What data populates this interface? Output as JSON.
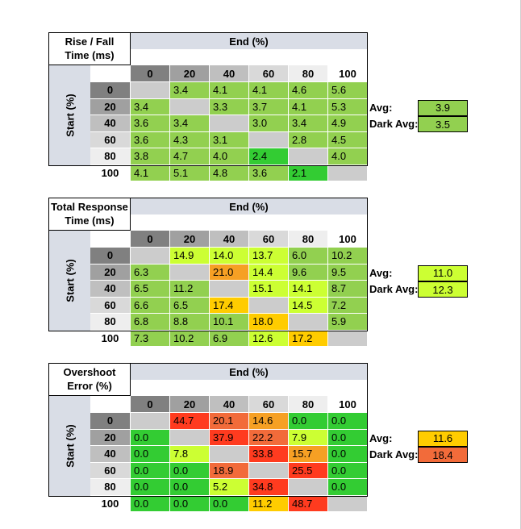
{
  "colors": {
    "green_light": "#92d050",
    "green": "#33cc33",
    "yellow_green": "#ccff33",
    "yellow": "#ffcc00",
    "orange": "#f6a024",
    "red_orange": "#f26b3a",
    "red": "#ff3b1f",
    "gray_cell": "#cccccc",
    "header_bg": "#d9dde6"
  },
  "tables": [
    {
      "title": [
        "Rise / Fall",
        "Time (ms)"
      ],
      "end_label": "End (%)",
      "start_label": "Start (%)",
      "headers": [
        "0",
        "20",
        "40",
        "60",
        "80",
        "100"
      ],
      "rows": [
        [
          "",
          "3.4",
          "4.1",
          "4.1",
          "4.6",
          "5.6"
        ],
        [
          "3.4",
          "",
          "3.3",
          "3.7",
          "4.1",
          "5.3"
        ],
        [
          "3.6",
          "3.4",
          "",
          "3.0",
          "3.4",
          "4.9"
        ],
        [
          "3.6",
          "4.3",
          "3.1",
          "",
          "2.8",
          "4.5"
        ],
        [
          "3.8",
          "4.7",
          "4.0",
          "2.4",
          "",
          "4.0"
        ],
        [
          "4.1",
          "5.1",
          "4.8",
          "3.6",
          "2.1",
          ""
        ]
      ],
      "colors": [
        [
          "gray_cell",
          "green_light",
          "green_light",
          "green_light",
          "green_light",
          "green_light"
        ],
        [
          "green_light",
          "gray_cell",
          "green_light",
          "green_light",
          "green_light",
          "green_light"
        ],
        [
          "green_light",
          "green_light",
          "gray_cell",
          "green_light",
          "green_light",
          "green_light"
        ],
        [
          "green_light",
          "green_light",
          "green_light",
          "gray_cell",
          "green_light",
          "green_light"
        ],
        [
          "green_light",
          "green_light",
          "green_light",
          "green",
          "gray_cell",
          "green_light"
        ],
        [
          "green_light",
          "green_light",
          "green_light",
          "green_light",
          "green",
          "gray_cell"
        ]
      ],
      "avg_label": "Avg:",
      "avg_value": "3.9",
      "avg_color": "green_light",
      "dark_avg_label": "Dark Avg:",
      "dark_avg_value": "3.5",
      "dark_avg_color": "green_light"
    },
    {
      "title": [
        "Total Response",
        "Time (ms)"
      ],
      "end_label": "End (%)",
      "start_label": "Start (%)",
      "headers": [
        "0",
        "20",
        "40",
        "60",
        "80",
        "100"
      ],
      "rows": [
        [
          "",
          "14.9",
          "14.0",
          "13.7",
          "6.0",
          "10.2"
        ],
        [
          "6.3",
          "",
          "21.0",
          "14.4",
          "9.6",
          "9.5"
        ],
        [
          "6.5",
          "11.2",
          "",
          "15.1",
          "14.1",
          "8.7"
        ],
        [
          "6.6",
          "6.5",
          "17.4",
          "",
          "14.5",
          "7.2"
        ],
        [
          "6.8",
          "8.8",
          "10.1",
          "18.0",
          "",
          "5.9"
        ],
        [
          "7.3",
          "10.2",
          "6.9",
          "12.6",
          "17.2",
          ""
        ]
      ],
      "colors": [
        [
          "gray_cell",
          "yellow_green",
          "yellow_green",
          "yellow_green",
          "green_light",
          "green_light"
        ],
        [
          "green_light",
          "gray_cell",
          "orange",
          "yellow_green",
          "green_light",
          "green_light"
        ],
        [
          "green_light",
          "green_light",
          "gray_cell",
          "yellow_green",
          "yellow_green",
          "green_light"
        ],
        [
          "green_light",
          "green_light",
          "yellow",
          "gray_cell",
          "yellow_green",
          "green_light"
        ],
        [
          "green_light",
          "green_light",
          "green_light",
          "yellow",
          "gray_cell",
          "green_light"
        ],
        [
          "green_light",
          "green_light",
          "green_light",
          "yellow_green",
          "yellow",
          "gray_cell"
        ]
      ],
      "avg_label": "Avg:",
      "avg_value": "11.0",
      "avg_color": "yellow_green",
      "dark_avg_label": "Dark Avg:",
      "dark_avg_value": "12.3",
      "dark_avg_color": "yellow_green"
    },
    {
      "title": [
        "Overshoot",
        "Error (%)"
      ],
      "end_label": "End (%)",
      "start_label": "Start (%)",
      "headers": [
        "0",
        "20",
        "40",
        "60",
        "80",
        "100"
      ],
      "rows": [
        [
          "",
          "44.7",
          "20.1",
          "14.6",
          "0.0",
          "0.0"
        ],
        [
          "0.0",
          "",
          "37.9",
          "22.2",
          "7.9",
          "0.0"
        ],
        [
          "0.0",
          "7.8",
          "",
          "33.8",
          "15.7",
          "0.0"
        ],
        [
          "0.0",
          "0.0",
          "18.9",
          "",
          "25.5",
          "0.0"
        ],
        [
          "0.0",
          "0.0",
          "5.2",
          "34.8",
          "",
          "0.0"
        ],
        [
          "0.0",
          "0.0",
          "0.0",
          "11.2",
          "48.7",
          ""
        ]
      ],
      "colors": [
        [
          "gray_cell",
          "red",
          "red_orange",
          "orange",
          "green",
          "green"
        ],
        [
          "green",
          "gray_cell",
          "red",
          "red_orange",
          "yellow_green",
          "green"
        ],
        [
          "green",
          "yellow_green",
          "gray_cell",
          "red",
          "orange",
          "green"
        ],
        [
          "green",
          "green",
          "red_orange",
          "gray_cell",
          "red",
          "green"
        ],
        [
          "green",
          "green",
          "yellow_green",
          "red",
          "gray_cell",
          "green"
        ],
        [
          "green",
          "green",
          "green",
          "yellow",
          "red",
          "gray_cell"
        ]
      ],
      "avg_label": "Avg:",
      "avg_value": "11.6",
      "avg_color": "yellow",
      "dark_avg_label": "Dark Avg:",
      "dark_avg_value": "18.4",
      "dark_avg_color": "red_orange"
    }
  ]
}
